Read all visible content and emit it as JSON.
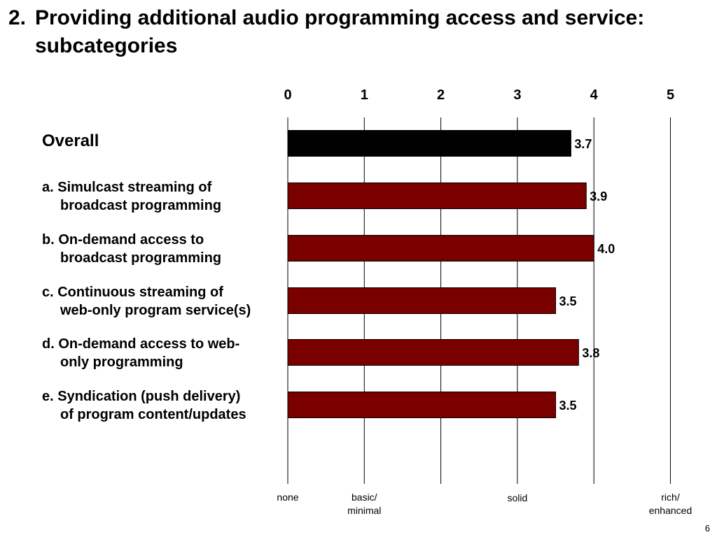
{
  "slide": {
    "number": "2.",
    "title": "Providing additional audio programming access and service: subcategories",
    "page_number": "6"
  },
  "colors": {
    "overall_bar": "#000000",
    "subcategory_bar": "#7a0000",
    "gridline": "#000000"
  },
  "chart_data": {
    "type": "bar",
    "orientation": "horizontal",
    "title": "",
    "xlim": [
      0,
      5
    ],
    "xticks": [
      "0",
      "1",
      "2",
      "3",
      "4",
      "5"
    ],
    "grid": true,
    "categories": [
      {
        "line1": "Overall",
        "line2": ""
      },
      {
        "line1": "a. Simulcast streaming of",
        "line2": "broadcast programming"
      },
      {
        "line1": "b. On-demand access to",
        "line2": "broadcast programming"
      },
      {
        "line1": "c. Continuous streaming of",
        "line2": "web-only program service(s)"
      },
      {
        "line1": "d. On-demand access to web-",
        "line2": "only programming"
      },
      {
        "line1": "e. Syndication (push delivery)",
        "line2": "of program content/updates"
      }
    ],
    "values": [
      3.7,
      3.9,
      4.0,
      3.5,
      3.8,
      3.5
    ],
    "data_labels": [
      "3.7",
      "3.9",
      "4.0",
      "3.5",
      "3.8",
      "3.5"
    ],
    "scale_labels": [
      {
        "value": 0,
        "text": "none"
      },
      {
        "value": 1,
        "text": "basic/ minimal"
      },
      {
        "value": 3,
        "text": "solid"
      },
      {
        "value": 5,
        "text": "rich/ enhanced"
      }
    ]
  }
}
